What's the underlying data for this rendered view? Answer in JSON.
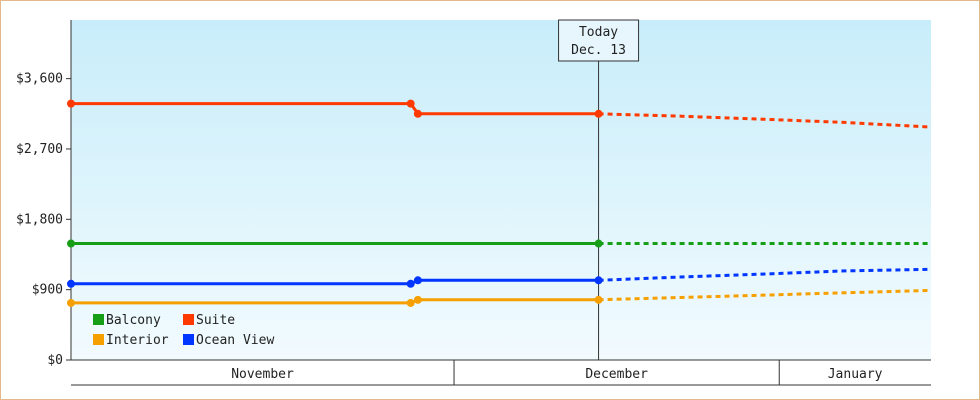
{
  "chart_data": {
    "type": "line",
    "title": "",
    "xlabel": "",
    "ylabel": "",
    "ylim": [
      0,
      4350
    ],
    "y_ticks": [
      0,
      900,
      1800,
      2700,
      3600
    ],
    "y_tick_labels": [
      "$0",
      "$900",
      "$1,800",
      "$2,700",
      "$3,600"
    ],
    "x_range": [
      "2015-10-01",
      "2016-01-28"
    ],
    "month_sections": [
      {
        "label": "November",
        "start": "2015-10-01",
        "end": "2015-11-23"
      },
      {
        "label": "December",
        "start": "2015-11-23",
        "end": "2016-01-07"
      },
      {
        "label": "January",
        "start": "2016-01-07",
        "end": "2016-01-28"
      }
    ],
    "today": {
      "line1": "Today",
      "line2": "Dec. 13",
      "date": "2015-12-13"
    },
    "legend_position": "bottom-left",
    "series": [
      {
        "name": "Balcony",
        "color": "#169e16",
        "actual": [
          [
            "2015-10-01",
            1490
          ],
          [
            "2015-12-13",
            1490
          ]
        ],
        "forecast": [
          [
            "2015-12-13",
            1490
          ],
          [
            "2016-01-28",
            1490
          ]
        ]
      },
      {
        "name": "Suite",
        "color": "#ff3a00",
        "actual": [
          [
            "2015-10-01",
            3280
          ],
          [
            "2015-11-17",
            3280
          ],
          [
            "2015-11-18",
            3150
          ],
          [
            "2015-12-13",
            3150
          ]
        ],
        "forecast": [
          [
            "2015-12-13",
            3150
          ],
          [
            "2015-12-24",
            3120
          ],
          [
            "2016-01-05",
            3080
          ],
          [
            "2016-01-16",
            3040
          ],
          [
            "2016-01-28",
            2980
          ]
        ]
      },
      {
        "name": "Interior",
        "color": "#f5a000",
        "actual": [
          [
            "2015-10-01",
            730
          ],
          [
            "2015-11-17",
            730
          ],
          [
            "2015-11-18",
            770
          ],
          [
            "2015-12-13",
            770
          ]
        ],
        "forecast": [
          [
            "2015-12-13",
            770
          ],
          [
            "2015-12-24",
            800
          ],
          [
            "2016-01-05",
            830
          ],
          [
            "2016-01-16",
            860
          ],
          [
            "2016-01-28",
            890
          ]
        ]
      },
      {
        "name": "Ocean View",
        "color": "#0036ff",
        "actual": [
          [
            "2015-10-01",
            975
          ],
          [
            "2015-11-17",
            975
          ],
          [
            "2015-11-18",
            1020
          ],
          [
            "2015-12-13",
            1020
          ]
        ],
        "forecast": [
          [
            "2015-12-13",
            1020
          ],
          [
            "2015-12-24",
            1060
          ],
          [
            "2016-01-05",
            1100
          ],
          [
            "2016-01-16",
            1140
          ],
          [
            "2016-01-28",
            1160
          ]
        ]
      }
    ]
  }
}
